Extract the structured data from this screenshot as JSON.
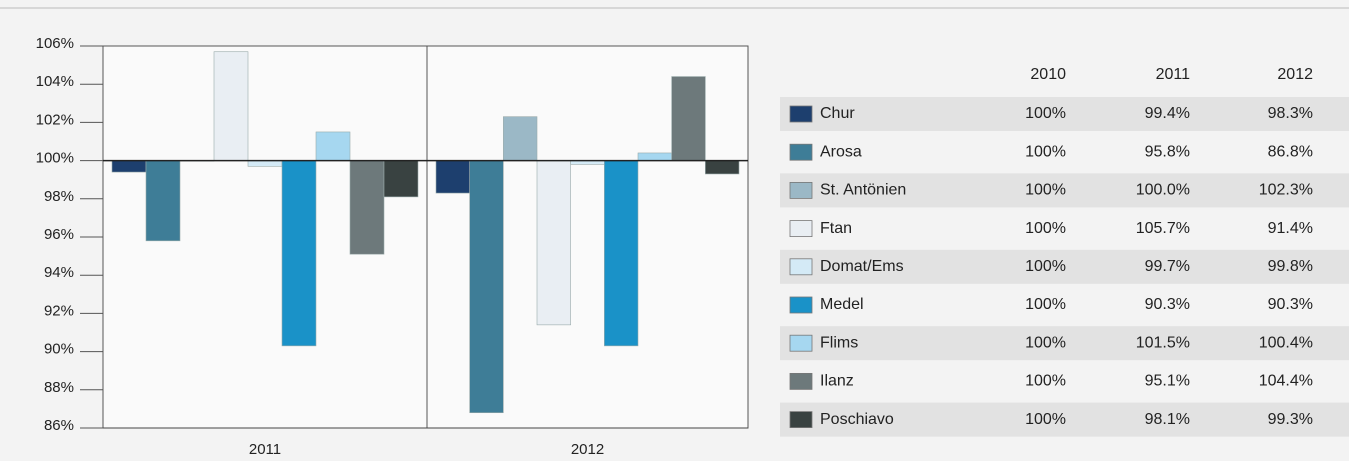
{
  "chart_data": {
    "type": "bar",
    "categories": [
      "2011",
      "2012"
    ],
    "baseline": 100,
    "ylim": [
      86,
      106
    ],
    "yticks": [
      {
        "value": 86,
        "label": "86%"
      },
      {
        "value": 88,
        "label": "88%"
      },
      {
        "value": 90,
        "label": "90%"
      },
      {
        "value": 92,
        "label": "92%"
      },
      {
        "value": 94,
        "label": "94%"
      },
      {
        "value": 96,
        "label": "96%"
      },
      {
        "value": 98,
        "label": "98%"
      },
      {
        "value": 100,
        "label": "100%"
      },
      {
        "value": 102,
        "label": "102%"
      },
      {
        "value": 104,
        "label": "104%"
      },
      {
        "value": 106,
        "label": "106%"
      }
    ],
    "table_columns": [
      "2010",
      "2011",
      "2012"
    ],
    "series": [
      {
        "name": "Chur",
        "color": "#1d3f6e",
        "base_label": "100%",
        "values": [
          99.4,
          98.3
        ],
        "value_labels": [
          "99.4%",
          "98.3%"
        ]
      },
      {
        "name": "Arosa",
        "color": "#3e7d97",
        "base_label": "100%",
        "values": [
          95.8,
          86.8
        ],
        "value_labels": [
          "95.8%",
          "86.8%"
        ]
      },
      {
        "name": "St. Antönien",
        "color": "#9bb8c6",
        "base_label": "100%",
        "values": [
          100.0,
          102.3
        ],
        "value_labels": [
          "100.0%",
          "102.3%"
        ]
      },
      {
        "name": "Ftan",
        "color": "#e9eef3",
        "base_label": "100%",
        "values": [
          105.7,
          91.4
        ],
        "value_labels": [
          "105.7%",
          "91.4%"
        ]
      },
      {
        "name": "Domat/Ems",
        "color": "#d4eaf6",
        "base_label": "100%",
        "values": [
          99.7,
          99.8
        ],
        "value_labels": [
          "99.7%",
          "99.8%"
        ]
      },
      {
        "name": "Medel",
        "color": "#1a92c8",
        "base_label": "100%",
        "values": [
          90.3,
          90.3
        ],
        "value_labels": [
          "90.3%",
          "90.3%"
        ]
      },
      {
        "name": "Flims",
        "color": "#a6d7f0",
        "base_label": "100%",
        "values": [
          101.5,
          100.4
        ],
        "value_labels": [
          "101.5%",
          "100.4%"
        ]
      },
      {
        "name": "Ilanz",
        "color": "#6d797b",
        "base_label": "100%",
        "values": [
          95.1,
          104.4
        ],
        "value_labels": [
          "95.1%",
          "104.4%"
        ]
      },
      {
        "name": "Poschiavo",
        "color": "#394241",
        "base_label": "100%",
        "values": [
          98.1,
          99.3
        ],
        "value_labels": [
          "98.1%",
          "99.3%"
        ]
      }
    ]
  }
}
